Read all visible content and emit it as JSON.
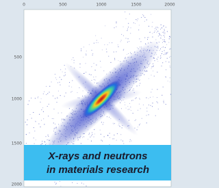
{
  "image": {
    "xticks": [
      "0",
      "500",
      "1000",
      "1500",
      "2000"
    ],
    "yticks": [
      "500",
      "1000",
      "1500",
      "2000"
    ]
  },
  "caption": {
    "line1": "X-rays and neutrons",
    "line2": "in materials research"
  }
}
